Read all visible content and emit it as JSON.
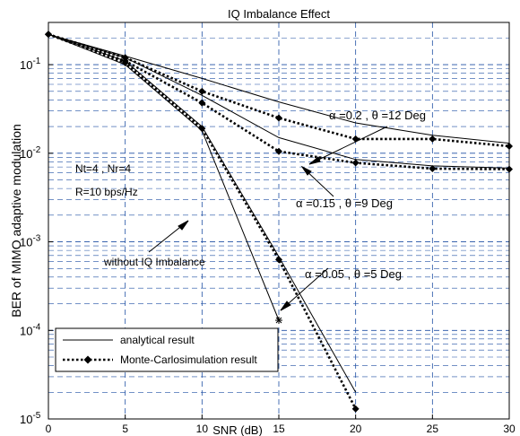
{
  "chart_data": {
    "type": "line",
    "title": "IQ Imbalance Effect",
    "xlabel": "SNR (dB)",
    "ylabel": "BER of MIMO adaptive modulation",
    "xlim": [
      0,
      30
    ],
    "ylim": [
      1e-05,
      0.3
    ],
    "yscale": "log",
    "grid": true,
    "x_ticks": [
      "0",
      "5",
      "10",
      "15",
      "20",
      "25",
      "30"
    ],
    "y_ticks": [
      {
        "base": "10",
        "exp": "-1",
        "value": 0.1
      },
      {
        "base": "10",
        "exp": "-2",
        "value": 0.01
      },
      {
        "base": "10",
        "exp": "-3",
        "value": 0.001
      },
      {
        "base": "10",
        "exp": "-4",
        "value": 0.0001
      },
      {
        "base": "10",
        "exp": "-5",
        "value": 1e-05
      }
    ],
    "legend": {
      "position": "bottom-left",
      "entries": [
        {
          "label": "analytical result",
          "style": "thin-solid"
        },
        {
          "label": "Monte-Carlosimulation result",
          "style": "dotted-diamond"
        }
      ]
    },
    "annotations": [
      {
        "id": "system",
        "lines": [
          "Nt=4 , Nr=4",
          "R=10 bps/Hz"
        ]
      },
      {
        "id": "a02",
        "text": "α =0.2 , θ =12 Deg"
      },
      {
        "id": "a015",
        "text": "α =0.15 , θ =9 Deg"
      },
      {
        "id": "a005",
        "text": "α =0.05 , θ =5 Deg"
      },
      {
        "id": "noiq",
        "text": "without IQ Imbalance"
      }
    ],
    "series": [
      {
        "group": "α =0.2 , θ =12 Deg",
        "kind": "analytical",
        "x": [
          0,
          5,
          10,
          15,
          20,
          25,
          30
        ],
        "y": [
          0.22,
          0.125,
          0.07,
          0.038,
          0.022,
          0.016,
          0.013
        ]
      },
      {
        "group": "α =0.2 , θ =12 Deg",
        "kind": "simulation",
        "x": [
          0,
          5,
          10,
          15,
          20,
          25,
          30
        ],
        "y": [
          0.22,
          0.12,
          0.05,
          0.025,
          0.0145,
          0.0145,
          0.012
        ]
      },
      {
        "group": "α =0.15 , θ =9 Deg",
        "kind": "analytical",
        "x": [
          0,
          5,
          10,
          15,
          20,
          25,
          30
        ],
        "y": [
          0.22,
          0.12,
          0.045,
          0.015,
          0.0085,
          0.0072,
          0.0068
        ]
      },
      {
        "group": "α =0.15 , θ =9 Deg",
        "kind": "simulation",
        "x": [
          0,
          5,
          10,
          15,
          20,
          25,
          30
        ],
        "y": [
          0.22,
          0.11,
          0.037,
          0.0105,
          0.0078,
          0.0067,
          0.0066
        ]
      },
      {
        "group": "α =0.05 , θ =5 Deg",
        "kind": "analytical",
        "x": [
          0,
          5,
          10,
          15,
          20
        ],
        "y": [
          0.22,
          0.11,
          0.02,
          0.00068,
          2e-05
        ]
      },
      {
        "group": "α =0.05 , θ =5 Deg",
        "kind": "simulation",
        "x": [
          0,
          5,
          10,
          15,
          20
        ],
        "y": [
          0.22,
          0.105,
          0.019,
          0.00063,
          1.3e-05
        ]
      },
      {
        "group": "without IQ Imbalance",
        "kind": "analytical",
        "x": [
          0,
          5,
          10,
          15
        ],
        "y": [
          0.22,
          0.1,
          0.018,
          0.00013
        ]
      }
    ]
  },
  "colors": {
    "line": "#000000",
    "grid": "#1f4fa3",
    "background": "#ffffff"
  }
}
